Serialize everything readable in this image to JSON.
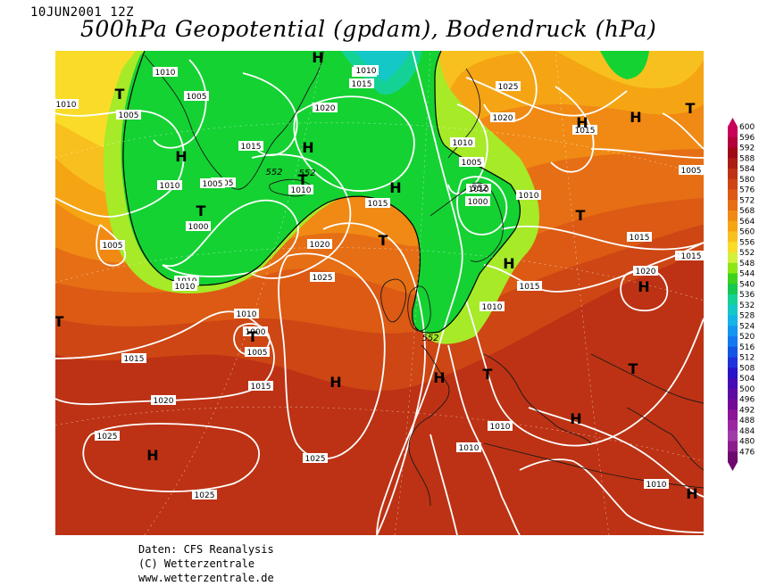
{
  "header": {
    "date": "10JUN2001 12Z",
    "title": "500hPa Geopotential (gpdam), Bodendruck (hPa)"
  },
  "footer": {
    "line1": "Daten: CFS Reanalysis",
    "line2": "(C) Wetterzentrale",
    "line3": "www.wetterzentrale.de"
  },
  "legend": {
    "levels": [
      "600",
      "596",
      "592",
      "588",
      "584",
      "580",
      "576",
      "572",
      "568",
      "564",
      "560",
      "556",
      "552",
      "548",
      "544",
      "540",
      "536",
      "532",
      "528",
      "524",
      "520",
      "516",
      "512",
      "508",
      "504",
      "500",
      "496",
      "492",
      "488",
      "484",
      "480",
      "476"
    ],
    "colors": [
      "#c8005a",
      "#b4003c",
      "#a00a14",
      "#aa1e14",
      "#bd3214",
      "#cd4614",
      "#dc5a14",
      "#e66e14",
      "#f08a14",
      "#f5a514",
      "#f8c01e",
      "#fadc28",
      "#d2f03c",
      "#8ce614",
      "#3cd21e",
      "#14c850",
      "#14d296",
      "#14c8c8",
      "#14b4e6",
      "#1496f0",
      "#1478f0",
      "#1455e6",
      "#1e32dc",
      "#2814c8",
      "#460ab4",
      "#5f0aa0",
      "#730a96",
      "#8c1496",
      "#9b28a0",
      "#a03caa",
      "#8c1e8c",
      "#6e0a6e"
    ]
  },
  "map": {
    "pressure_labels": [
      "1010",
      "1005",
      "1005",
      "1010",
      "1005",
      "1010",
      "1020",
      "1015",
      "1005",
      "1010",
      "1000",
      "1005",
      "1010",
      "1015",
      "1010",
      "1020",
      "1010",
      "1025",
      "1010",
      "1015",
      "1000",
      "1005",
      "1015",
      "1020",
      "1025",
      "1025",
      "1010",
      "1025",
      "1015",
      "1010",
      "1005",
      "1010",
      "1000",
      "1010",
      "1020",
      "1025",
      "1015",
      "1015",
      "1020",
      "1005",
      "1010",
      "1010",
      "1015",
      "1020",
      "1010",
      "1010",
      "1015"
    ],
    "height_labels": [
      "552",
      "552",
      "552",
      "552"
    ],
    "highs": [
      "H",
      "H",
      "H",
      "H",
      "H",
      "H",
      "H",
      "H",
      "H",
      "H",
      "H",
      "H",
      "H"
    ],
    "lows": [
      "T",
      "T",
      "T",
      "T",
      "T",
      "T",
      "T",
      "T",
      "T",
      "T"
    ]
  }
}
